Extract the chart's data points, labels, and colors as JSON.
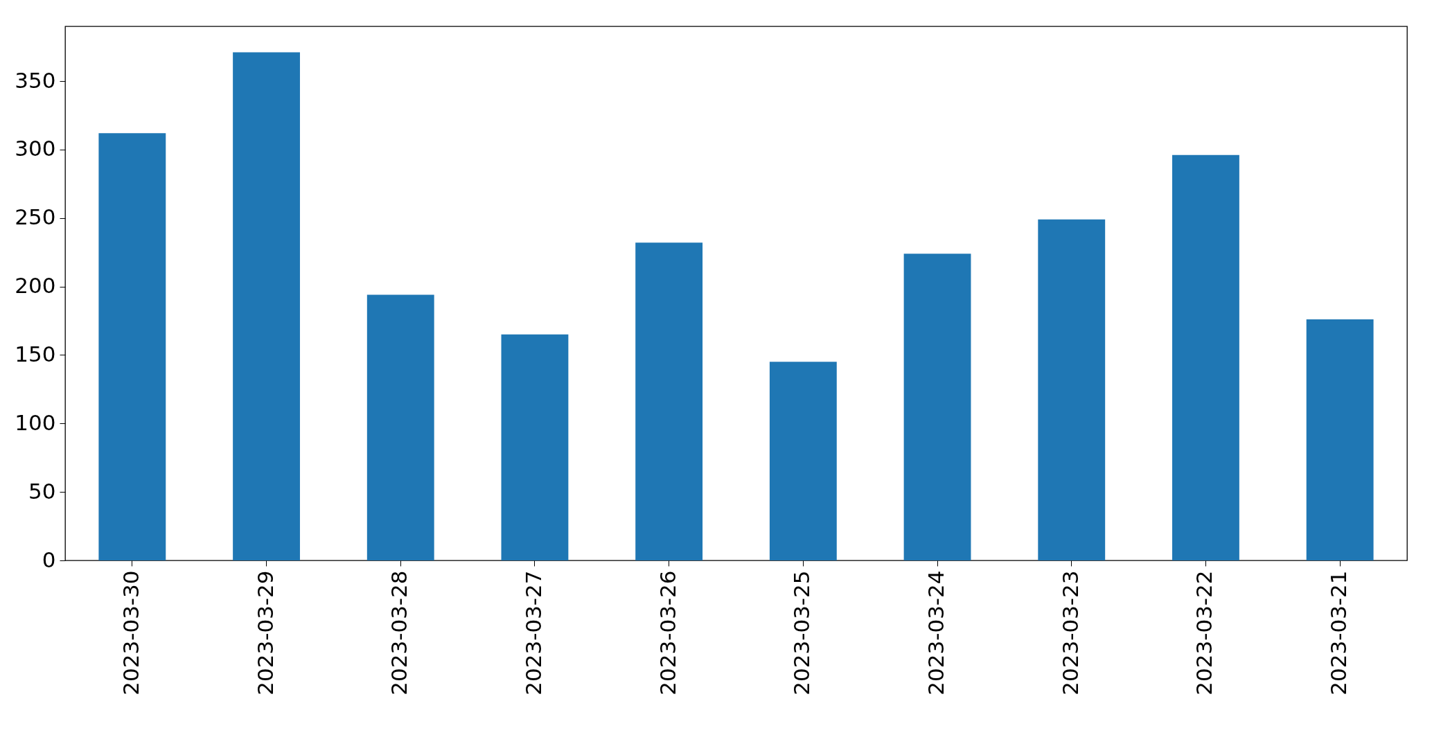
{
  "chart_data": {
    "type": "bar",
    "categories": [
      "2023-03-30",
      "2023-03-29",
      "2023-03-28",
      "2023-03-27",
      "2023-03-26",
      "2023-03-25",
      "2023-03-24",
      "2023-03-23",
      "2023-03-22",
      "2023-03-21"
    ],
    "values": [
      312,
      371,
      194,
      165,
      232,
      145,
      224,
      249,
      296,
      176
    ],
    "color": "#1f77b4",
    "ylim": [
      0,
      390
    ],
    "yticks": [
      0,
      50,
      100,
      150,
      200,
      250,
      300,
      350
    ],
    "grid": false,
    "legend": false
  }
}
